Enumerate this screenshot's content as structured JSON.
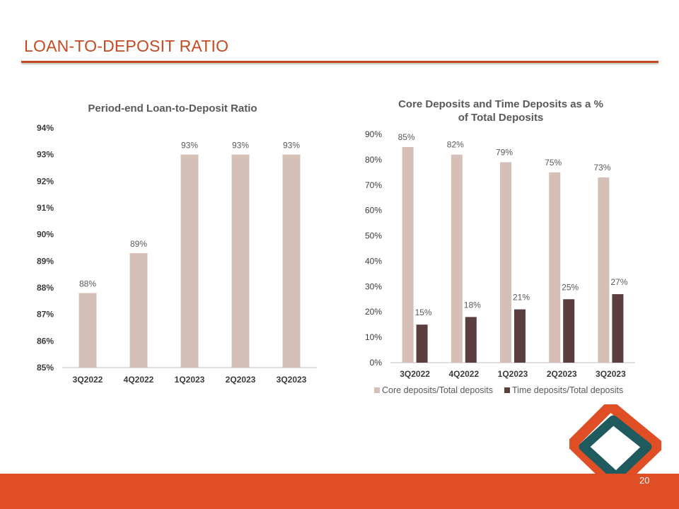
{
  "page": {
    "title": "LOAN-TO-DEPOSIT RATIO",
    "page_number": "20",
    "accent_color": "#e04e25",
    "logo_colors": {
      "outer": "#e04e25",
      "inner": "#1f5a5e"
    }
  },
  "chart_data": [
    {
      "id": "ltd",
      "type": "bar",
      "title": "Period-end Loan-to-Deposit Ratio",
      "categories": [
        "3Q2022",
        "4Q2022",
        "1Q2023",
        "2Q2023",
        "3Q2023"
      ],
      "series": [
        {
          "name": "Loan-to-Deposit Ratio",
          "values": [
            87.8,
            89.3,
            93.0,
            93.0,
            93.0
          ],
          "color": "#d6bfb6"
        }
      ],
      "data_labels": [
        "88%",
        "89%",
        "93%",
        "93%",
        "93%"
      ],
      "ylim": [
        85,
        94
      ],
      "yticks": [
        "85%",
        "86%",
        "87%",
        "88%",
        "89%",
        "90%",
        "91%",
        "92%",
        "93%",
        "94%"
      ],
      "xlabel": "",
      "ylabel": "",
      "grid": false,
      "legend": "none"
    },
    {
      "id": "deposits",
      "type": "bar",
      "title_lines": [
        "Core Deposits and Time Deposits as a %",
        "of Total Deposits"
      ],
      "categories": [
        "3Q2022",
        "4Q2022",
        "1Q2023",
        "2Q2023",
        "3Q2023"
      ],
      "series": [
        {
          "name": "Core deposits/Total deposits",
          "values": [
            85,
            82,
            79,
            75,
            73
          ],
          "color": "#d6bfb6",
          "labels": [
            "85%",
            "82%",
            "79%",
            "75%",
            "73%"
          ]
        },
        {
          "name": "Time deposits/Total deposits",
          "values": [
            15,
            18,
            21,
            25,
            27
          ],
          "color": "#5b3e3e",
          "labels": [
            "15%",
            "18%",
            "21%",
            "25%",
            "27%"
          ]
        }
      ],
      "ylim": [
        0,
        90
      ],
      "yticks": [
        "0%",
        "10%",
        "20%",
        "30%",
        "40%",
        "50%",
        "60%",
        "70%",
        "80%",
        "90%"
      ],
      "xlabel": "",
      "ylabel": "",
      "grid": false,
      "legend": "bottom"
    }
  ]
}
